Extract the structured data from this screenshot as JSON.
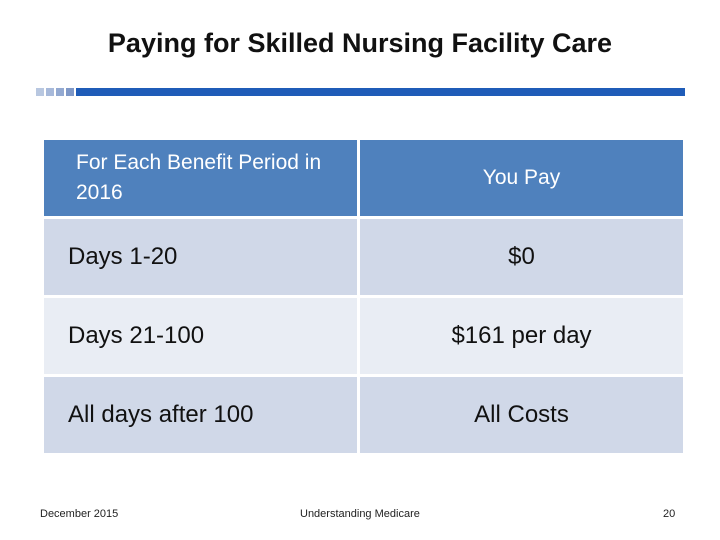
{
  "slide": {
    "title": "Paying for Skilled Nursing Facility Care"
  },
  "colors": {
    "accent": "#1f5cb8",
    "header_bg": "#4f81bd",
    "row_dark": "#d0d8e8",
    "row_light": "#e9edf4",
    "square_shades": [
      "#b8c7e0",
      "#a7b9da",
      "#93a9d1",
      "#7f98c7"
    ]
  },
  "table": {
    "headers": [
      "For Each Benefit Period in 2016",
      "You Pay"
    ],
    "rows": [
      {
        "period": "Days 1-20",
        "pay": "$0"
      },
      {
        "period": "Days 21-100",
        "pay": "$161 per day"
      },
      {
        "period": "All days after 100",
        "pay": "All Costs"
      }
    ]
  },
  "footer": {
    "date": "December 2015",
    "center": "Understanding Medicare",
    "page": "20"
  }
}
